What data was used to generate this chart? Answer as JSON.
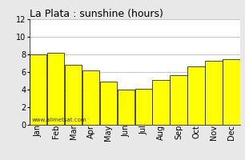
{
  "title": "La Plata : sunshine (hours)",
  "categories": [
    "Jan",
    "Feb",
    "Mar",
    "Apr",
    "May",
    "Jun",
    "Jul",
    "Aug",
    "Sep",
    "Oct",
    "Nov",
    "Dec"
  ],
  "bar_values": [
    8.0,
    8.2,
    6.8,
    6.2,
    4.9,
    4.0,
    4.1,
    5.1,
    5.6,
    6.6,
    7.3,
    7.5
  ],
  "bar_color": "#ffff00",
  "bar_edge_color": "#000000",
  "ylim": [
    0,
    12
  ],
  "yticks": [
    0,
    2,
    4,
    6,
    8,
    10,
    12
  ],
  "grid_color": "#bbbbbb",
  "plot_bg_color": "#ffffff",
  "fig_bg_color": "#e8e8e8",
  "title_fontsize": 9,
  "tick_fontsize": 7,
  "watermark": "www.allmetsat.com"
}
